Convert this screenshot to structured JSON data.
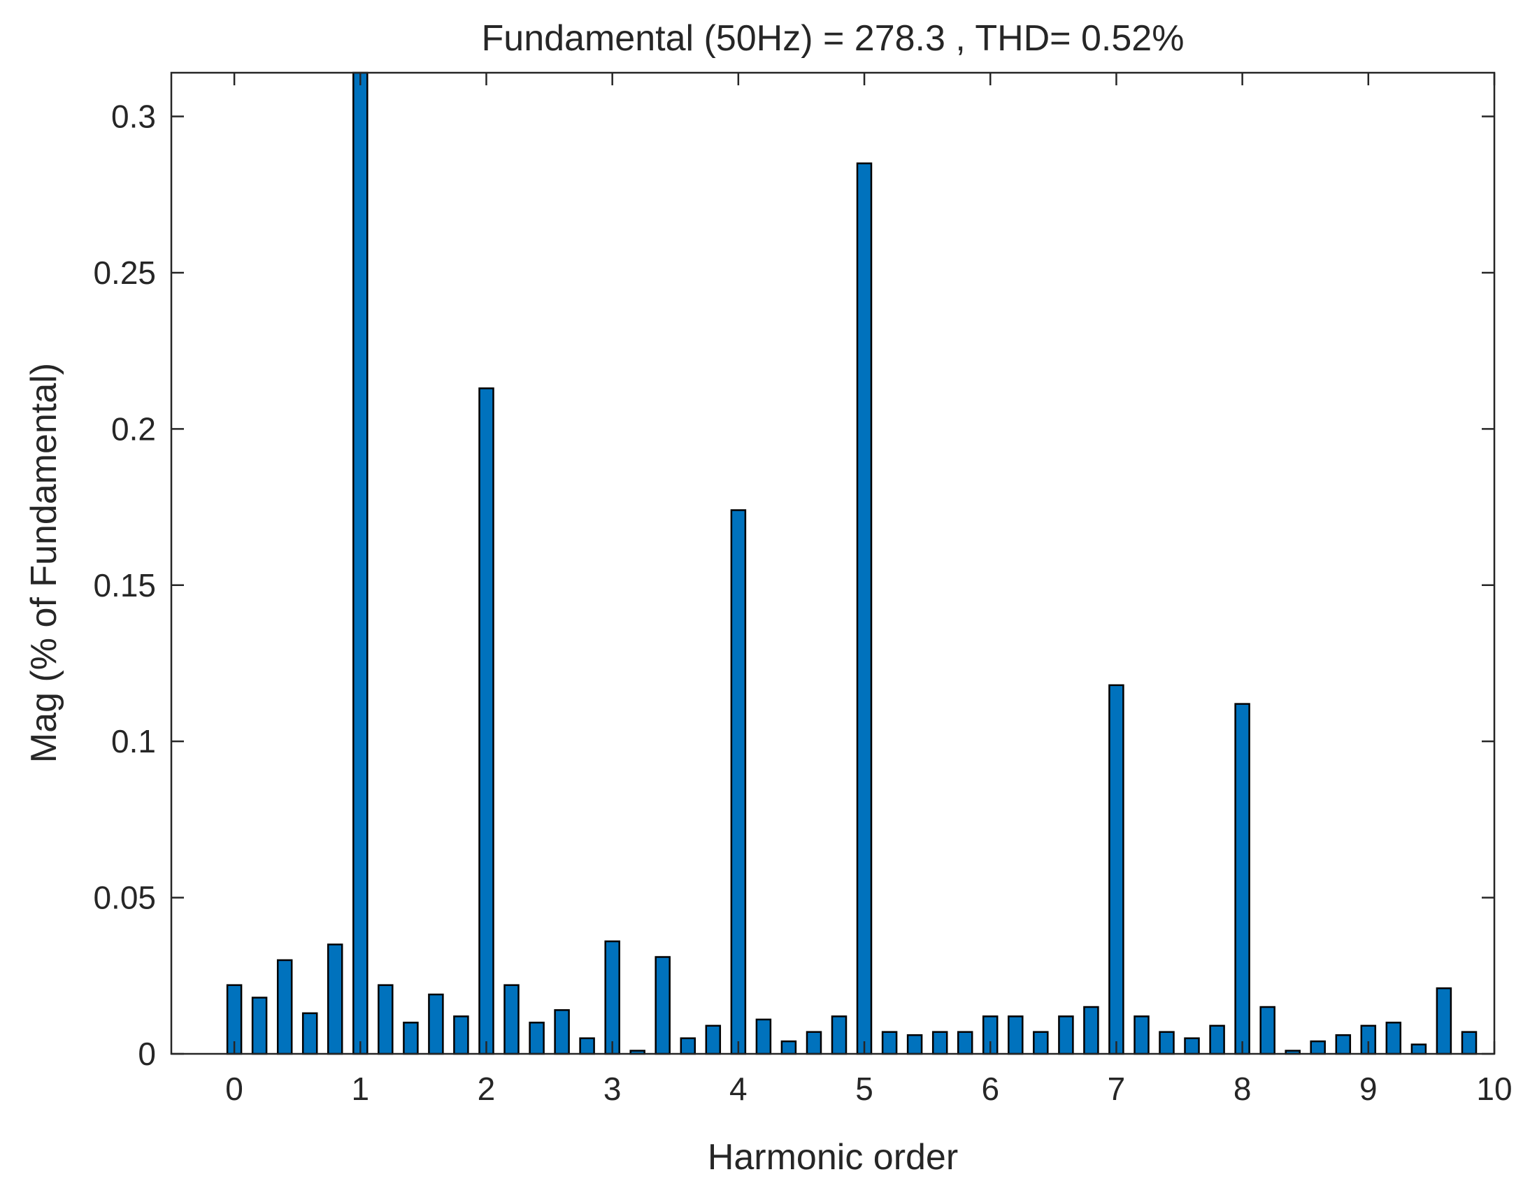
{
  "chart_data": {
    "type": "bar",
    "title": "Fundamental (50Hz) = 278.3 , THD= 0.52%",
    "xlabel": "Harmonic order",
    "ylabel": "Mag (% of Fundamental)",
    "xlim": [
      -0.5,
      10
    ],
    "ylim": [
      0,
      0.314
    ],
    "xticks": [
      "0",
      "1",
      "2",
      "3",
      "4",
      "5",
      "6",
      "7",
      "8",
      "9",
      "10"
    ],
    "yticks": [
      "0",
      "0.05",
      "0.1",
      "0.15",
      "0.2",
      "0.25",
      "0.3"
    ],
    "grid": false,
    "bar_color": "#0072BD",
    "x": [
      0,
      0.2,
      0.4,
      0.6,
      0.8,
      1.0,
      1.2,
      1.4,
      1.6,
      1.8,
      2.0,
      2.2,
      2.4,
      2.6,
      2.8,
      3.0,
      3.2,
      3.4,
      3.6,
      3.8,
      4.0,
      4.2,
      4.4,
      4.6,
      4.8,
      5.0,
      5.2,
      5.4,
      5.6,
      5.8,
      6.0,
      6.2,
      6.4,
      6.6,
      6.8,
      7.0,
      7.2,
      7.4,
      7.6,
      7.8,
      8.0,
      8.2,
      8.4,
      8.6,
      8.8,
      9.0,
      9.2,
      9.4,
      9.6,
      9.8
    ],
    "values": [
      0.022,
      0.018,
      0.03,
      0.013,
      0.035,
      0.32,
      0.022,
      0.01,
      0.019,
      0.012,
      0.213,
      0.022,
      0.01,
      0.014,
      0.005,
      0.036,
      0.001,
      0.031,
      0.005,
      0.009,
      0.174,
      0.011,
      0.004,
      0.007,
      0.012,
      0.285,
      0.007,
      0.006,
      0.007,
      0.007,
      0.012,
      0.012,
      0.007,
      0.012,
      0.015,
      0.118,
      0.012,
      0.007,
      0.005,
      0.009,
      0.112,
      0.015,
      0.001,
      0.004,
      0.006,
      0.009,
      0.01,
      0.003,
      0.021,
      0.007
    ]
  }
}
